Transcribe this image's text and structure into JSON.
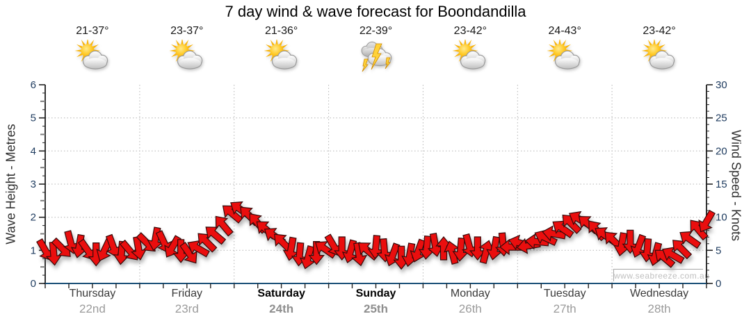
{
  "title": "7 day wind & wave forecast for Boondandilla",
  "watermark": "www.seabreeze.com.au",
  "days": [
    {
      "name": "Thursday",
      "date": "22nd",
      "temp": "21-37°",
      "icon": "partly-cloudy",
      "weekend": false
    },
    {
      "name": "Friday",
      "date": "23rd",
      "temp": "23-37°",
      "icon": "partly-cloudy",
      "weekend": false
    },
    {
      "name": "Saturday",
      "date": "24th",
      "temp": "21-36°",
      "icon": "partly-cloudy",
      "weekend": true
    },
    {
      "name": "Sunday",
      "date": "25th",
      "temp": "22-39°",
      "icon": "thunderstorm",
      "weekend": true
    },
    {
      "name": "Monday",
      "date": "26th",
      "temp": "23-42°",
      "icon": "partly-cloudy",
      "weekend": false
    },
    {
      "name": "Tuesday",
      "date": "27th",
      "temp": "24-43°",
      "icon": "partly-cloudy",
      "weekend": false
    },
    {
      "name": "Wednesday",
      "date": "28th",
      "temp": "23-42°",
      "icon": "partly-cloudy",
      "weekend": false
    }
  ],
  "chart_data": {
    "type": "wind-direction-arrow-series",
    "title": "7 day wind & wave forecast for Boondandilla",
    "left_axis": {
      "label": "Wave Height - Metres",
      "min": 0,
      "max": 6,
      "major_ticks": [
        0,
        1,
        2,
        3,
        4,
        5,
        6
      ],
      "minor_step": 0.25
    },
    "right_axis": {
      "label": "Wind Speed - Knots",
      "min": 0,
      "max": 30,
      "major_ticks": [
        0,
        5,
        10,
        15,
        20,
        25,
        30
      ],
      "minor_step": 1
    },
    "x_axis": {
      "categories": [
        "Thursday 22nd",
        "Friday 23rd",
        "Saturday 24th",
        "Sunday 25th",
        "Monday 26th",
        "Tuesday 27th",
        "Wednesday 28th"
      ],
      "ticks_per_day": 4,
      "bold_days": [
        "Saturday",
        "Sunday"
      ]
    },
    "grid": {
      "horizontal_dotted_at_metres": [
        1,
        2,
        3,
        4,
        5
      ],
      "vertical_dotted": "day-boundaries",
      "legend": "none"
    },
    "series": [
      {
        "name": "Wind speed & direction",
        "unit": "knots",
        "axis": "right",
        "knots": [
          5.0,
          4.5,
          5.3,
          6.2,
          5.6,
          5.0,
          4.4,
          5.0,
          5.6,
          4.6,
          4.9,
          5.3,
          6.1,
          6.7,
          6.2,
          5.5,
          4.9,
          4.5,
          5.3,
          6.3,
          7.4,
          8.8,
          10.6,
          11.2,
          10.3,
          9.2,
          8.2,
          7.2,
          6.2,
          5.2,
          4.4,
          3.9,
          4.6,
          5.2,
          5.7,
          5.3,
          4.8,
          4.4,
          5.0,
          5.5,
          5.0,
          4.3,
          3.9,
          4.3,
          4.9,
          5.4,
          5.8,
          5.3,
          4.7,
          5.1,
          5.7,
          5.3,
          4.8,
          5.3,
          5.9,
          5.5,
          6.1,
          5.7,
          6.3,
          6.9,
          7.5,
          8.3,
          9.1,
          9.7,
          9.0,
          8.1,
          7.3,
          6.5,
          5.9,
          6.3,
          5.6,
          5.0,
          4.4,
          3.9,
          4.3,
          5.3,
          6.7,
          8.2,
          9.3
        ],
        "dir_deg": [
          60,
          85,
          45,
          75,
          100,
          55,
          90,
          115,
          70,
          95,
          50,
          80,
          45,
          100,
          65,
          120,
          90,
          55,
          210,
          225,
          220,
          230,
          220,
          215,
          225,
          230,
          220,
          215,
          225,
          100,
          95,
          105,
          90,
          215,
          60,
          90,
          105,
          80,
          220,
          95,
          85,
          110,
          90,
          100,
          110,
          95,
          80,
          270,
          255,
          95,
          75,
          90,
          285,
          100,
          85,
          180,
          195,
          170,
          185,
          205,
          190,
          215,
          225,
          210,
          220,
          230,
          215,
          225,
          100,
          90,
          110,
          95,
          105,
          220,
          210,
          225,
          215,
          230,
          120
        ]
      }
    ]
  },
  "colors": {
    "arrow_fill": "#ea0e0e",
    "arrow_outline": "#350a0a",
    "axis_line": "#000000",
    "bottom_axis": "#1b5077",
    "grid_line": "#b4b4b4",
    "tick_text": "#1d3a5e",
    "tick_mark": "#222222",
    "half_tick_mark": "#7d7d7d",
    "title_text": "#000000",
    "sun_core": "#ffc821",
    "sun_ray": "#f9b50e",
    "cloud_outline": "#9b9b9b",
    "bolt_fill": "#ffd23a",
    "bolt_outline": "#cf8a00"
  }
}
